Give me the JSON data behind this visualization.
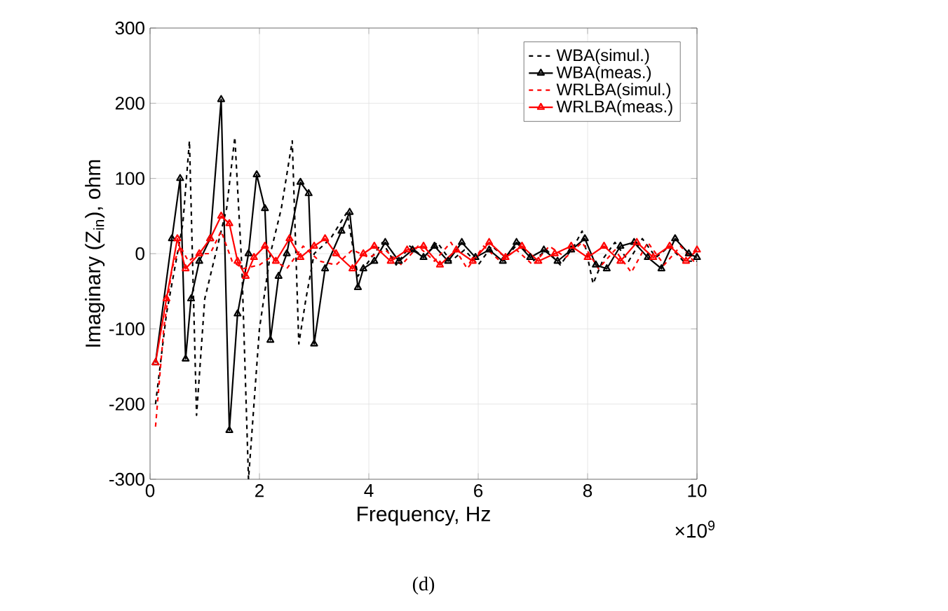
{
  "chart_data": {
    "type": "line",
    "xlabel": "Frequency, Hz",
    "ylabel": "Imaginary (Z$_{in}$), ohm",
    "annotations": [
      "×10$^{9}$",
      "(d)"
    ],
    "xlim": [
      0,
      10
    ],
    "ylim": [
      -300,
      300
    ],
    "xticks": [
      0,
      2,
      4,
      6,
      8,
      10
    ],
    "yticks": [
      -300,
      -200,
      -100,
      0,
      100,
      200,
      300
    ],
    "grid": true,
    "legend": "top right",
    "series": [
      {
        "name": "WBA(simul.)",
        "color": "#000000",
        "line_style": "dashed",
        "marker": "none",
        "x": [
          0.1,
          0.3,
          0.5,
          0.6,
          0.72,
          0.85,
          1.0,
          1.2,
          1.4,
          1.55,
          1.68,
          1.8,
          2.0,
          2.2,
          2.4,
          2.6,
          2.72,
          2.85,
          3.0,
          3.3,
          3.6,
          3.8,
          4.0,
          4.25,
          4.5,
          4.75,
          5.0,
          5.25,
          5.5,
          5.75,
          6.0,
          6.25,
          6.5,
          6.75,
          7.0,
          7.25,
          7.5,
          7.75,
          7.9,
          8.1,
          8.3,
          8.5,
          8.75,
          9.0,
          9.25,
          9.5,
          9.75,
          10
        ],
        "values": [
          -200,
          -80,
          0,
          40,
          150,
          -215,
          -60,
          0,
          60,
          155,
          -20,
          -300,
          -100,
          0,
          60,
          150,
          -120,
          -60,
          0,
          20,
          55,
          -30,
          -10,
          15,
          -15,
          10,
          -5,
          15,
          -10,
          5,
          -15,
          10,
          -5,
          15,
          -10,
          5,
          -15,
          10,
          30,
          -40,
          -5,
          15,
          -10,
          20,
          -5,
          10,
          -10,
          -10
        ]
      },
      {
        "name": "WBA(meas.)",
        "color": "#000000",
        "line_style": "solid",
        "marker": "triangle",
        "x": [
          0.1,
          0.4,
          0.55,
          0.65,
          0.75,
          0.9,
          1.1,
          1.3,
          1.45,
          1.6,
          1.8,
          1.95,
          2.1,
          2.2,
          2.35,
          2.5,
          2.75,
          2.9,
          3.0,
          3.2,
          3.5,
          3.65,
          3.8,
          3.9,
          4.1,
          4.3,
          4.55,
          4.8,
          5.0,
          5.2,
          5.45,
          5.7,
          5.95,
          6.2,
          6.45,
          6.7,
          6.95,
          7.2,
          7.45,
          7.7,
          7.95,
          8.15,
          8.35,
          8.6,
          8.85,
          9.1,
          9.35,
          9.6,
          9.85,
          10
        ],
        "values": [
          -145,
          20,
          100,
          -140,
          -60,
          -10,
          20,
          205,
          -235,
          -80,
          0,
          105,
          60,
          -115,
          -30,
          0,
          95,
          80,
          -120,
          -20,
          30,
          55,
          -45,
          -20,
          -10,
          15,
          -10,
          5,
          -5,
          10,
          -10,
          15,
          -5,
          5,
          -10,
          15,
          -5,
          5,
          -10,
          5,
          20,
          -15,
          -20,
          10,
          15,
          -5,
          -20,
          20,
          0,
          -5
        ]
      },
      {
        "name": "WRLBA(simul.)",
        "color": "#ff0000",
        "line_style": "dashed",
        "marker": "none",
        "x": [
          0.1,
          0.25,
          0.4,
          0.55,
          0.7,
          0.9,
          1.1,
          1.3,
          1.5,
          1.7,
          2.0,
          2.2,
          2.5,
          2.8,
          3.1,
          3.4,
          3.7,
          4.0,
          4.3,
          4.6,
          4.9,
          5.2,
          5.5,
          5.8,
          6.1,
          6.4,
          6.7,
          7.0,
          7.3,
          7.6,
          7.9,
          8.2,
          8.5,
          8.8,
          9.1,
          9.4,
          9.7,
          10
        ],
        "values": [
          -230,
          -100,
          -20,
          10,
          -10,
          0,
          0,
          30,
          -10,
          -20,
          -15,
          -5,
          -20,
          10,
          -10,
          -15,
          5,
          -5,
          5,
          -15,
          10,
          -10,
          15,
          -20,
          10,
          -10,
          5,
          -15,
          10,
          -5,
          15,
          -20,
          5,
          -25,
          15,
          -15,
          10,
          -15
        ]
      },
      {
        "name": "WRLBA(meas.)",
        "color": "#ff0000",
        "line_style": "solid",
        "marker": "triangle",
        "x": [
          0.1,
          0.3,
          0.5,
          0.65,
          0.9,
          1.1,
          1.3,
          1.45,
          1.6,
          1.75,
          1.9,
          2.1,
          2.3,
          2.55,
          2.75,
          3.0,
          3.2,
          3.4,
          3.7,
          3.9,
          4.1,
          4.4,
          4.7,
          5.0,
          5.3,
          5.6,
          5.9,
          6.2,
          6.5,
          6.8,
          7.1,
          7.4,
          7.7,
          8.0,
          8.3,
          8.6,
          8.9,
          9.2,
          9.5,
          9.8,
          10
        ],
        "values": [
          -145,
          -60,
          20,
          -20,
          0,
          20,
          50,
          40,
          -10,
          -30,
          -5,
          10,
          -10,
          20,
          -5,
          10,
          20,
          0,
          -20,
          0,
          10,
          -10,
          5,
          10,
          -15,
          5,
          -10,
          15,
          -5,
          10,
          -10,
          0,
          10,
          -5,
          10,
          -10,
          15,
          -5,
          10,
          -10,
          5
        ]
      }
    ]
  }
}
